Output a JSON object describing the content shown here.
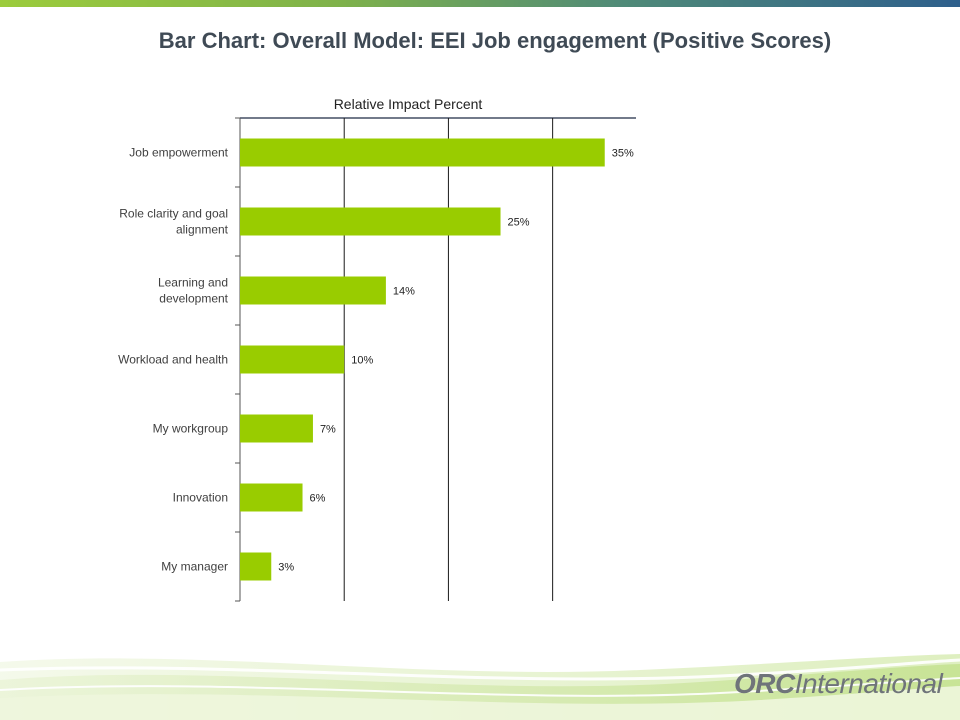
{
  "slide": {
    "title": "Bar Chart: Overall Model: EEI Job engagement (Positive Scores)"
  },
  "logo": {
    "part1": "ORC",
    "part2": "International"
  },
  "colors": {
    "bar": "#99cc00",
    "title": "#3f4a55",
    "axis": "#1f2a44",
    "label": "#404040"
  },
  "chart_data": {
    "type": "bar",
    "orientation": "horizontal",
    "title": "Relative Impact Percent",
    "title_position": "top",
    "categories": [
      [
        "Job empowerment"
      ],
      [
        "Role clarity and goal",
        "alignment"
      ],
      [
        "Learning and",
        "development"
      ],
      [
        "Workload and health"
      ],
      [
        "My workgroup"
      ],
      [
        "Innovation"
      ],
      [
        "My manager"
      ]
    ],
    "values": [
      35,
      25,
      14,
      10,
      7,
      6,
      3
    ],
    "data_labels": [
      "35%",
      "25%",
      "14%",
      "10%",
      "7%",
      "6%",
      "3%"
    ],
    "xlim": [
      0,
      38
    ],
    "vertical_gridlines_at": [
      10,
      20,
      30
    ],
    "legend": "none"
  }
}
